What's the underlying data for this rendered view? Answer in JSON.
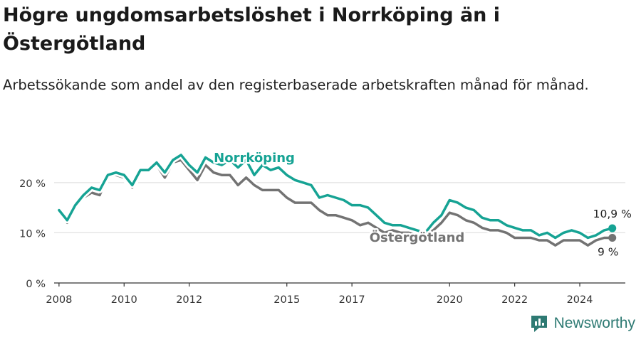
{
  "header": {
    "title": "Högre ungdomsarbetslöshet i Norrköping än i Östergötland",
    "subtitle": "Arbetssökande som andel av den registerbaserade arbetskraften månad för månad."
  },
  "brand": {
    "name": "Newsworthy",
    "icon": "newsworthy-logo-icon"
  },
  "colors": {
    "norrkoping": "#16a394",
    "ostergotland": "#737373",
    "grid": "#d9d9d9",
    "axis": "#333333"
  },
  "chart_data": {
    "type": "line",
    "title": "Högre ungdomsarbetslöshet i Norrköping än i Östergötland",
    "subtitle": "Arbetssökande som andel av den registerbaserade arbetskraften månad för månad.",
    "xlabel": "",
    "ylabel": "",
    "xlim": [
      2007.85,
      2025.4
    ],
    "ylim": [
      0,
      25.5
    ],
    "xticks": [
      2008,
      2010,
      2012,
      2015,
      2017,
      2020,
      2022,
      2024
    ],
    "xtick_labels": [
      "2008",
      "2010",
      "2012",
      "2015",
      "2017",
      "2020",
      "2022",
      "2024"
    ],
    "yticks": [
      0,
      10,
      20
    ],
    "ytick_labels": [
      "0 %",
      "10 %",
      "20 %"
    ],
    "grid": true,
    "legend": "inline labels",
    "series": [
      {
        "name": "Norrköping",
        "color": "#16a394",
        "end_label": "10,9 %",
        "x": [
          2008.0,
          2008.25,
          2008.5,
          2008.75,
          2009.0,
          2009.25,
          2009.5,
          2009.75,
          2010.0,
          2010.25,
          2010.5,
          2010.75,
          2011.0,
          2011.25,
          2011.5,
          2011.75,
          2012.0,
          2012.25,
          2012.5,
          2012.75,
          2013.0,
          2013.25,
          2013.5,
          2013.75,
          2014.0,
          2014.25,
          2014.5,
          2014.75,
          2015.0,
          2015.25,
          2015.5,
          2015.75,
          2016.0,
          2016.25,
          2016.5,
          2016.75,
          2017.0,
          2017.25,
          2017.5,
          2017.75,
          2018.0,
          2018.25,
          2018.5,
          2018.75,
          2019.0,
          2019.25,
          2019.5,
          2019.75,
          2020.0,
          2020.25,
          2020.5,
          2020.75,
          2021.0,
          2021.25,
          2021.5,
          2021.75,
          2022.0,
          2022.25,
          2022.5,
          2022.75,
          2023.0,
          2023.25,
          2023.5,
          2023.75,
          2024.0,
          2024.25,
          2024.5,
          2024.75,
          2025.0
        ],
        "values": [
          14.5,
          12.5,
          15.5,
          17.5,
          19.0,
          18.5,
          21.5,
          22.0,
          21.5,
          19.5,
          22.5,
          22.5,
          24.0,
          22.0,
          24.5,
          25.5,
          23.5,
          22.0,
          25.0,
          24.0,
          23.5,
          24.5,
          23.0,
          24.5,
          21.5,
          23.5,
          22.5,
          23.0,
          21.5,
          20.5,
          20.0,
          19.5,
          17.0,
          17.5,
          17.0,
          16.5,
          15.5,
          15.5,
          15.0,
          13.5,
          12.0,
          11.5,
          11.5,
          11.0,
          10.5,
          10.0,
          12.0,
          13.5,
          16.5,
          16.0,
          15.0,
          14.5,
          13.0,
          12.5,
          12.5,
          11.5,
          11.0,
          10.5,
          10.5,
          9.5,
          10.0,
          9.0,
          10.0,
          10.5,
          10.0,
          9.0,
          9.5,
          10.5,
          10.9
        ]
      },
      {
        "name": "Östergötland",
        "color": "#737373",
        "end_label": "9 %",
        "x": [
          2008.0,
          2008.25,
          2008.5,
          2008.75,
          2009.0,
          2009.25,
          2009.5,
          2009.75,
          2010.0,
          2010.25,
          2010.5,
          2010.75,
          2011.0,
          2011.25,
          2011.5,
          2011.75,
          2012.0,
          2012.25,
          2012.5,
          2012.75,
          2013.0,
          2013.25,
          2013.5,
          2013.75,
          2014.0,
          2014.25,
          2014.5,
          2014.75,
          2015.0,
          2015.25,
          2015.5,
          2015.75,
          2016.0,
          2016.25,
          2016.5,
          2016.75,
          2017.0,
          2017.25,
          2017.5,
          2017.75,
          2018.0,
          2018.25,
          2018.5,
          2018.75,
          2019.0,
          2019.25,
          2019.5,
          2019.75,
          2020.0,
          2020.25,
          2020.5,
          2020.75,
          2021.0,
          2021.25,
          2021.5,
          2021.75,
          2022.0,
          2022.25,
          2022.5,
          2022.75,
          2023.0,
          2023.25,
          2023.5,
          2023.75,
          2024.0,
          2024.25,
          2024.5,
          2024.75,
          2025.0
        ],
        "values": [
          14.0,
          12.0,
          15.0,
          17.0,
          18.0,
          17.5,
          21.5,
          21.5,
          21.0,
          19.0,
          22.5,
          22.5,
          23.5,
          21.0,
          24.0,
          24.5,
          22.5,
          20.5,
          23.5,
          22.0,
          21.5,
          21.5,
          19.5,
          21.0,
          19.5,
          18.5,
          18.5,
          18.5,
          17.0,
          16.0,
          16.0,
          16.0,
          14.5,
          13.5,
          13.5,
          13.0,
          12.5,
          11.5,
          12.0,
          11.0,
          10.0,
          10.5,
          10.0,
          10.0,
          9.5,
          10.0,
          10.5,
          12.0,
          14.0,
          13.5,
          12.5,
          12.0,
          11.0,
          10.5,
          10.5,
          10.0,
          9.0,
          9.0,
          9.0,
          8.5,
          8.5,
          7.5,
          8.5,
          8.5,
          8.5,
          7.5,
          8.5,
          9.0,
          9.0
        ]
      }
    ]
  }
}
